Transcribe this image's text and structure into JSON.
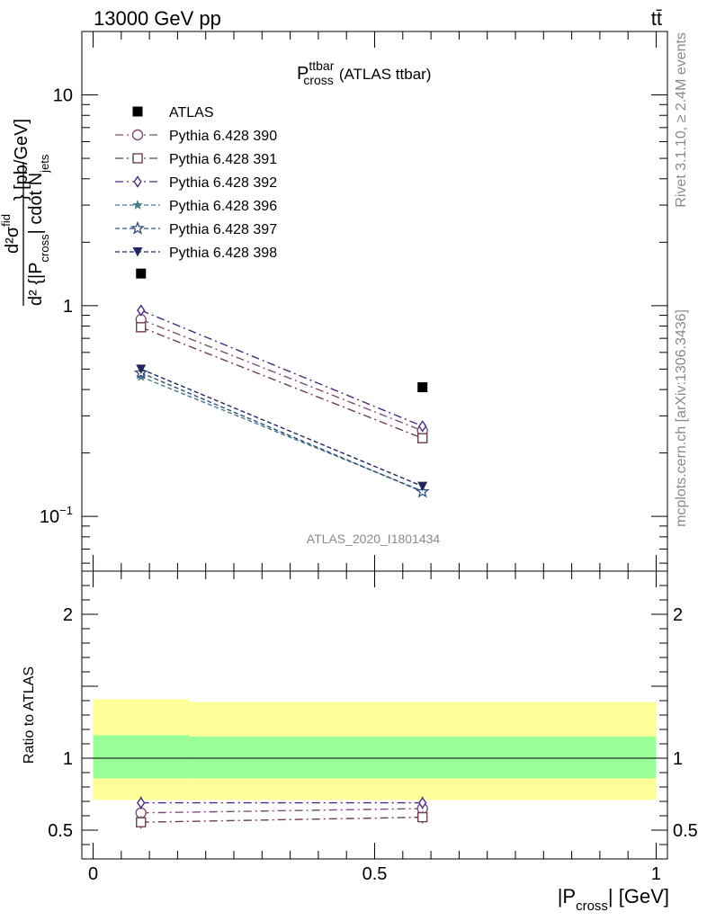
{
  "header": {
    "left": "13000 GeV pp",
    "right": "tt̄"
  },
  "side_labels": {
    "rivet": "Rivet 3.1.10, ≥ 2.4M events",
    "mcplots": "mcplots.cern.ch [arXiv:1306.3436]"
  },
  "watermark": "ATLAS_2020_I1801434",
  "chart_data": [
    {
      "type": "scatter",
      "panel": "main",
      "title_parts": {
        "base": "P",
        "sup": "ttbar",
        "sub": "cross",
        "suffix": "(ATLAS ttbar)"
      },
      "ylabel_parts": {
        "num": "d²σ",
        "num_sup": "fid",
        "den_a": "d² {|P",
        "den_sub": "cross",
        "den_b": "| cdot N",
        "den_sub2": "jets",
        "unit": "} [pb/GeV]"
      },
      "yscale": "log",
      "xlim": [
        -0.02,
        1.02
      ],
      "ylim": [
        0.055,
        20
      ],
      "y_ticks": [
        {
          "value": 0.1,
          "label_base": "10",
          "label_exp": "−1"
        },
        {
          "value": 1,
          "label": "1"
        },
        {
          "value": 10,
          "label": "10"
        }
      ],
      "x": [
        0.085,
        0.585
      ],
      "series": [
        {
          "name": "ATLAS",
          "marker": "square-filled",
          "color": "#000000",
          "dash": "none",
          "values": [
            1.42,
            0.41
          ]
        },
        {
          "name": "Pythia 6.428 390",
          "marker": "circle-open",
          "color": "#7a5077",
          "dash": "dashdot",
          "values": [
            0.86,
            0.255
          ]
        },
        {
          "name": "Pythia 6.428 391",
          "marker": "square-open",
          "color": "#6b3f52",
          "dash": "dashdot",
          "values": [
            0.79,
            0.235
          ]
        },
        {
          "name": "Pythia 6.428 392",
          "marker": "diamond-open",
          "color": "#4a2a7c",
          "dash": "dashdot",
          "values": [
            0.95,
            0.268
          ]
        },
        {
          "name": "Pythia 6.428 396",
          "marker": "star-filled",
          "color": "#4a7a8c",
          "dash": "dashed",
          "values": [
            0.46,
            0.132
          ]
        },
        {
          "name": "Pythia 6.428 397",
          "marker": "star-open",
          "color": "#2f4f7a",
          "dash": "dashed",
          "values": [
            0.48,
            0.131
          ]
        },
        {
          "name": "Pythia 6.428 398",
          "marker": "triangle-down-filled",
          "color": "#22285e",
          "dash": "dashed",
          "values": [
            0.5,
            0.139
          ]
        }
      ],
      "legend_position": "top-left"
    },
    {
      "type": "scatter",
      "panel": "ratio",
      "ylabel": "Ratio to ATLAS",
      "xlabel_parts": {
        "a": "|P",
        "sub": "cross",
        "b": "| [GeV]"
      },
      "xlim": [
        -0.02,
        1.02
      ],
      "ylim": [
        0.3,
        2.3
      ],
      "x_ticks": [
        {
          "value": 0,
          "label": "0"
        },
        {
          "value": 0.5,
          "label": "0.5"
        },
        {
          "value": 1,
          "label": "1"
        }
      ],
      "y_ticks": [
        {
          "value": 0.5,
          "label": "0.5"
        },
        {
          "value": 1,
          "label": "1"
        },
        {
          "value": 2,
          "label": "2"
        }
      ],
      "bands": [
        {
          "x_from": 0.0,
          "x_to": 0.17,
          "yellow": [
            0.71,
            1.41
          ],
          "green": [
            0.86,
            1.16
          ]
        },
        {
          "x_from": 0.17,
          "x_to": 1.0,
          "yellow": [
            0.71,
            1.39
          ],
          "green": [
            0.86,
            1.15
          ]
        }
      ],
      "x": [
        0.085,
        0.585
      ],
      "series": [
        {
          "name": "Pythia 6.428 390",
          "marker": "circle-open",
          "color": "#7a5077",
          "dash": "dashdot",
          "values": [
            0.62,
            0.65
          ]
        },
        {
          "name": "Pythia 6.428 391",
          "marker": "square-open",
          "color": "#6b3f52",
          "dash": "dashdot",
          "values": [
            0.555,
            0.59
          ]
        },
        {
          "name": "Pythia 6.428 392",
          "marker": "diamond-open",
          "color": "#4a2a7c",
          "dash": "dashdot",
          "values": [
            0.69,
            0.69
          ]
        }
      ],
      "colors": {
        "yellow_band": "#ffff99",
        "green_band": "#99ff99"
      }
    }
  ]
}
